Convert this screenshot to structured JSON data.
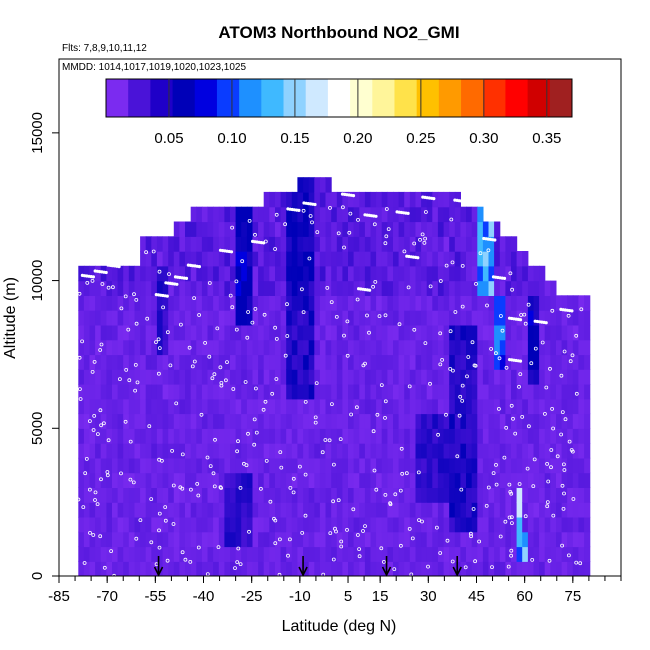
{
  "chart_data": {
    "type": "heatmap",
    "title": "ATOM3 Northbound NO2_GMI",
    "subtitle_flights": "Flts: 7,8,9,10,11,12",
    "subtitle_dates": "MMDD: 1014,1017,1019,1020,1023,1025",
    "xlabel": "Latitude (deg N)",
    "ylabel": "Altitude (m)",
    "xlim": [
      -85,
      90
    ],
    "ylim": [
      0,
      17500
    ],
    "x_ticks": [
      -85,
      -70,
      -55,
      -40,
      -25,
      -10,
      5,
      15,
      30,
      45,
      60,
      75
    ],
    "y_ticks": [
      0,
      5000,
      10000,
      15000
    ],
    "colorbar": {
      "range": [
        0.0,
        0.37
      ],
      "ticks": [
        0.05,
        0.1,
        0.15,
        0.2,
        0.25,
        0.3,
        0.35
      ],
      "colors": [
        "#7b2bf0",
        "#4a13d8",
        "#1f00c8",
        "#0000b8",
        "#0000e0",
        "#0a3cff",
        "#1e90ff",
        "#3fb9ff",
        "#8fd2ff",
        "#cfe9ff",
        "#ffffff",
        "#ffffd0",
        "#fff59a",
        "#ffe24a",
        "#ffc000",
        "#ff9a00",
        "#ff6a00",
        "#ff3000",
        "#ff0000",
        "#d00000",
        "#a02020"
      ]
    },
    "field_background_value": 0.02,
    "field_features": [
      {
        "lat": [
          -55,
          -52
        ],
        "alt": [
          7500,
          10000
        ],
        "value": 0.045
      },
      {
        "lat": [
          -30,
          -26
        ],
        "alt": [
          8500,
          12500
        ],
        "value": 0.06
      },
      {
        "lat": [
          -15,
          -6
        ],
        "alt": [
          6000,
          13000
        ],
        "value": 0.05
      },
      {
        "lat": [
          36,
          44
        ],
        "alt": [
          1500,
          8000
        ],
        "value": 0.05
      },
      {
        "lat": [
          44,
          49
        ],
        "alt": [
          9500,
          12500
        ],
        "value": 0.12
      },
      {
        "lat": [
          50,
          53
        ],
        "alt": [
          7000,
          9200
        ],
        "value": 0.1
      },
      {
        "lat": [
          56,
          59
        ],
        "alt": [
          1200,
          2500
        ],
        "value": 0.14
      },
      {
        "lat": [
          57,
          60
        ],
        "alt": [
          500,
          1000
        ],
        "value": 0.12
      },
      {
        "lat": [
          60,
          64
        ],
        "alt": [
          6500,
          9000
        ],
        "value": 0.06
      },
      {
        "lat": [
          -35,
          -25
        ],
        "alt": [
          1000,
          3000
        ],
        "value": 0.045
      },
      {
        "lat": [
          25,
          35
        ],
        "alt": [
          2500,
          5000
        ],
        "value": 0.045
      }
    ],
    "flight_track_points": [
      {
        "lat": -76,
        "alt": 10150
      },
      {
        "lat": -72,
        "alt": 10300
      },
      {
        "lat": -68,
        "alt": 10500
      },
      {
        "lat": -53,
        "alt": 9500
      },
      {
        "lat": -50,
        "alt": 9900
      },
      {
        "lat": -47,
        "alt": 10100
      },
      {
        "lat": -43,
        "alt": 10500
      },
      {
        "lat": -33,
        "alt": 11000
      },
      {
        "lat": -23,
        "alt": 11300
      },
      {
        "lat": -12,
        "alt": 12400
      },
      {
        "lat": -7,
        "alt": 12600
      },
      {
        "lat": 5,
        "alt": 12900
      },
      {
        "lat": 12,
        "alt": 12200
      },
      {
        "lat": 22,
        "alt": 12300
      },
      {
        "lat": 30,
        "alt": 12800
      },
      {
        "lat": 25,
        "alt": 10800
      },
      {
        "lat": 10,
        "alt": 9700
      },
      {
        "lat": 40,
        "alt": 12700
      },
      {
        "lat": 49,
        "alt": 11400
      },
      {
        "lat": 52,
        "alt": 10100
      },
      {
        "lat": 57,
        "alt": 8700
      },
      {
        "lat": 65,
        "alt": 8600
      },
      {
        "lat": 73,
        "alt": 9000
      },
      {
        "lat": 57,
        "alt": 7300
      },
      {
        "lat": -52,
        "alt": 11800
      },
      {
        "lat": -67,
        "alt": 10600
      }
    ],
    "profile_markers_lat": [
      -54,
      -9,
      17,
      39
    ]
  }
}
